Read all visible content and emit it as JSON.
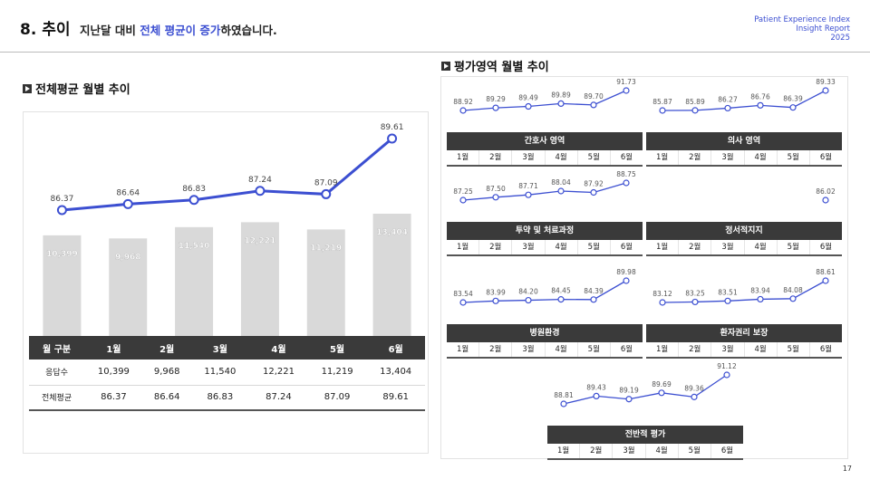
{
  "header": {
    "number": "8. 추이",
    "sub_prefix": "지난달 대비 ",
    "sub_highlight": "전체 평균이 증가",
    "sub_suffix": "하였습니다.",
    "report_line1": "Patient Experience Index",
    "report_line2": "Insight Report",
    "report_line3": "2025"
  },
  "left_section_title": "전체평균 월별 추이",
  "right_section_title": "평가영역 월별 추이",
  "months": [
    "1월",
    "2월",
    "3월",
    "4월",
    "5월",
    "6월"
  ],
  "table": {
    "header_label": "월 구분",
    "row1_label": "응답수",
    "row2_label": "전체평균",
    "responses_text": [
      "10,399",
      "9,968",
      "11,540",
      "12,221",
      "11,219",
      "13,404"
    ],
    "averages_text": [
      "86.37",
      "86.64",
      "86.83",
      "87.24",
      "87.09",
      "89.61"
    ]
  },
  "chart_data": [
    {
      "type": "bar+line",
      "title": "전체평균 월별 추이",
      "categories": [
        "1월",
        "2월",
        "3월",
        "4월",
        "5월",
        "6월"
      ],
      "series": [
        {
          "name": "응답수",
          "kind": "bar",
          "values": [
            10399,
            9968,
            11540,
            12221,
            11219,
            13404
          ],
          "labels": [
            "10,399",
            "9,968",
            "11,540",
            "12,221",
            "11,219",
            "13,404"
          ],
          "color": "#d9d9d9"
        },
        {
          "name": "전체평균",
          "kind": "line",
          "values": [
            86.37,
            86.64,
            86.83,
            87.24,
            87.09,
            89.61
          ],
          "labels": [
            "86.37",
            "86.64",
            "86.83",
            "87.24",
            "87.09",
            "89.61"
          ],
          "color": "#3c4fd1"
        }
      ]
    },
    {
      "type": "line",
      "title": "간호사 영역",
      "categories": [
        "1월",
        "2월",
        "3월",
        "4월",
        "5월",
        "6월"
      ],
      "values": [
        88.92,
        89.29,
        89.49,
        89.89,
        89.7,
        91.73
      ],
      "labels": [
        "88.92",
        "89.29",
        "89.49",
        "89.89",
        "89.70",
        "91.73"
      ],
      "color": "#3c4fd1"
    },
    {
      "type": "line",
      "title": "의사 영역",
      "categories": [
        "1월",
        "2월",
        "3월",
        "4월",
        "5월",
        "6월"
      ],
      "values": [
        85.87,
        85.89,
        86.27,
        86.76,
        86.39,
        89.33
      ],
      "labels": [
        "85.87",
        "85.89",
        "86.27",
        "86.76",
        "86.39",
        "89.33"
      ],
      "color": "#3c4fd1"
    },
    {
      "type": "line",
      "title": "투약 및 처료과정",
      "categories": [
        "1월",
        "2월",
        "3월",
        "4월",
        "5월",
        "6월"
      ],
      "values": [
        87.25,
        87.5,
        87.71,
        88.04,
        87.92,
        88.75
      ],
      "labels": [
        "87.25",
        "87.50",
        "87.71",
        "88.04",
        "87.92",
        "88.75"
      ],
      "color": "#3c4fd1"
    },
    {
      "type": "line",
      "title": "정서적지지",
      "categories": [
        "1월",
        "2월",
        "3월",
        "4월",
        "5월",
        "6월"
      ],
      "values": [
        null,
        null,
        null,
        null,
        null,
        86.02
      ],
      "labels": [
        "",
        "",
        "",
        "",
        "",
        "86.02"
      ],
      "color": "#3c4fd1"
    },
    {
      "type": "line",
      "title": "병원환경",
      "categories": [
        "1월",
        "2월",
        "3월",
        "4월",
        "5월",
        "6월"
      ],
      "values": [
        83.54,
        83.99,
        84.2,
        84.45,
        84.39,
        89.98
      ],
      "labels": [
        "83.54",
        "83.99",
        "84.20",
        "84.45",
        "84.39",
        "89.98"
      ],
      "color": "#3c4fd1"
    },
    {
      "type": "line",
      "title": "환자권리 보장",
      "categories": [
        "1월",
        "2월",
        "3월",
        "4월",
        "5월",
        "6월"
      ],
      "values": [
        83.12,
        83.25,
        83.51,
        83.94,
        84.08,
        88.61
      ],
      "labels": [
        "83.12",
        "83.25",
        "83.51",
        "83.94",
        "84.08",
        "88.61"
      ],
      "color": "#3c4fd1"
    },
    {
      "type": "line",
      "title": "전반적 평가",
      "categories": [
        "1월",
        "2월",
        "3월",
        "4월",
        "5월",
        "6월"
      ],
      "values": [
        88.81,
        89.43,
        89.19,
        89.69,
        89.36,
        91.12
      ],
      "labels": [
        "88.81",
        "89.43",
        "89.19",
        "89.69",
        "89.36",
        "91.12"
      ],
      "color": "#3c4fd1"
    }
  ],
  "page_number": "17"
}
